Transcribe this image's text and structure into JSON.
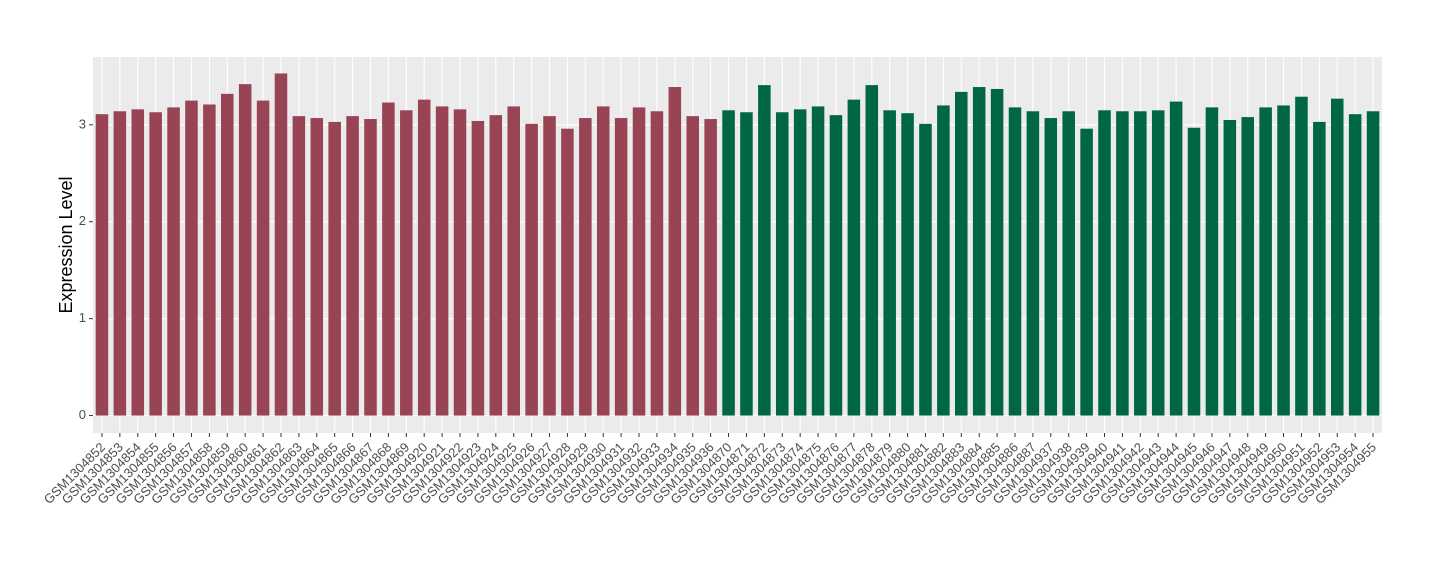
{
  "chart_data": {
    "type": "bar",
    "y_label": "Expression Level",
    "categories": [
      "GSM1304852",
      "GSM1304853",
      "GSM1304854",
      "GSM1304855",
      "GSM1304856",
      "GSM1304857",
      "GSM1304858",
      "GSM1304859",
      "GSM1304860",
      "GSM1304861",
      "GSM1304862",
      "GSM1304863",
      "GSM1304864",
      "GSM1304865",
      "GSM1304866",
      "GSM1304867",
      "GSM1304868",
      "GSM1304869",
      "GSM1304920",
      "GSM1304921",
      "GSM1304922",
      "GSM1304923",
      "GSM1304924",
      "GSM1304925",
      "GSM1304926",
      "GSM1304927",
      "GSM1304928",
      "GSM1304929",
      "GSM1304930",
      "GSM1304931",
      "GSM1304932",
      "GSM1304933",
      "GSM1304934",
      "GSM1304935",
      "GSM1304936",
      "GSM1304870",
      "GSM1304871",
      "GSM1304872",
      "GSM1304873",
      "GSM1304874",
      "GSM1304875",
      "GSM1304876",
      "GSM1304877",
      "GSM1304878",
      "GSM1304879",
      "GSM1304880",
      "GSM1304881",
      "GSM1304882",
      "GSM1304883",
      "GSM1304884",
      "GSM1304885",
      "GSM1304886",
      "GSM1304887",
      "GSM1304937",
      "GSM1304938",
      "GSM1304939",
      "GSM1304940",
      "GSM1304941",
      "GSM1304942",
      "GSM1304943",
      "GSM1304944",
      "GSM1304945",
      "GSM1304946",
      "GSM1304947",
      "GSM1304948",
      "GSM1304949",
      "GSM1304950",
      "GSM1304951",
      "GSM1304952",
      "GSM1304953",
      "GSM1304954",
      "GSM1304955"
    ],
    "values": [
      3.11,
      3.14,
      3.16,
      3.13,
      3.18,
      3.25,
      3.21,
      3.32,
      3.42,
      3.25,
      3.53,
      3.09,
      3.07,
      3.03,
      3.09,
      3.06,
      3.23,
      3.15,
      3.26,
      3.19,
      3.16,
      3.04,
      3.1,
      3.19,
      3.01,
      3.09,
      2.96,
      3.07,
      3.19,
      3.07,
      3.18,
      3.14,
      3.39,
      3.09,
      3.06,
      3.15,
      3.13,
      3.41,
      3.13,
      3.16,
      3.19,
      3.1,
      3.26,
      3.41,
      3.15,
      3.12,
      3.01,
      3.2,
      3.34,
      3.39,
      3.37,
      3.18,
      3.14,
      3.07,
      3.14,
      2.96,
      3.15,
      3.14,
      3.14,
      3.15,
      3.24,
      2.97,
      3.18,
      3.05,
      3.08,
      3.18,
      3.2,
      3.29,
      3.03,
      3.27,
      3.11,
      3.14
    ],
    "colors": [
      "#994455",
      "#994455",
      "#994455",
      "#994455",
      "#994455",
      "#994455",
      "#994455",
      "#994455",
      "#994455",
      "#994455",
      "#994455",
      "#994455",
      "#994455",
      "#994455",
      "#994455",
      "#994455",
      "#994455",
      "#994455",
      "#994455",
      "#994455",
      "#994455",
      "#994455",
      "#994455",
      "#994455",
      "#994455",
      "#994455",
      "#994455",
      "#994455",
      "#994455",
      "#994455",
      "#994455",
      "#994455",
      "#994455",
      "#994455",
      "#994455",
      "#006644",
      "#006644",
      "#006644",
      "#006644",
      "#006644",
      "#006644",
      "#006644",
      "#006644",
      "#006644",
      "#006644",
      "#006644",
      "#006644",
      "#006644",
      "#006644",
      "#006644",
      "#006644",
      "#006644",
      "#006644",
      "#006644",
      "#006644",
      "#006644",
      "#006644",
      "#006644",
      "#006644",
      "#006644",
      "#006644",
      "#006644",
      "#006644",
      "#006644",
      "#006644",
      "#006644",
      "#006644",
      "#006644",
      "#006644",
      "#006644",
      "#006644",
      "#006644"
    ],
    "ylim": [
      -0.18,
      3.7
    ],
    "yticks": [
      0,
      1,
      2,
      3
    ],
    "grid": true
  }
}
